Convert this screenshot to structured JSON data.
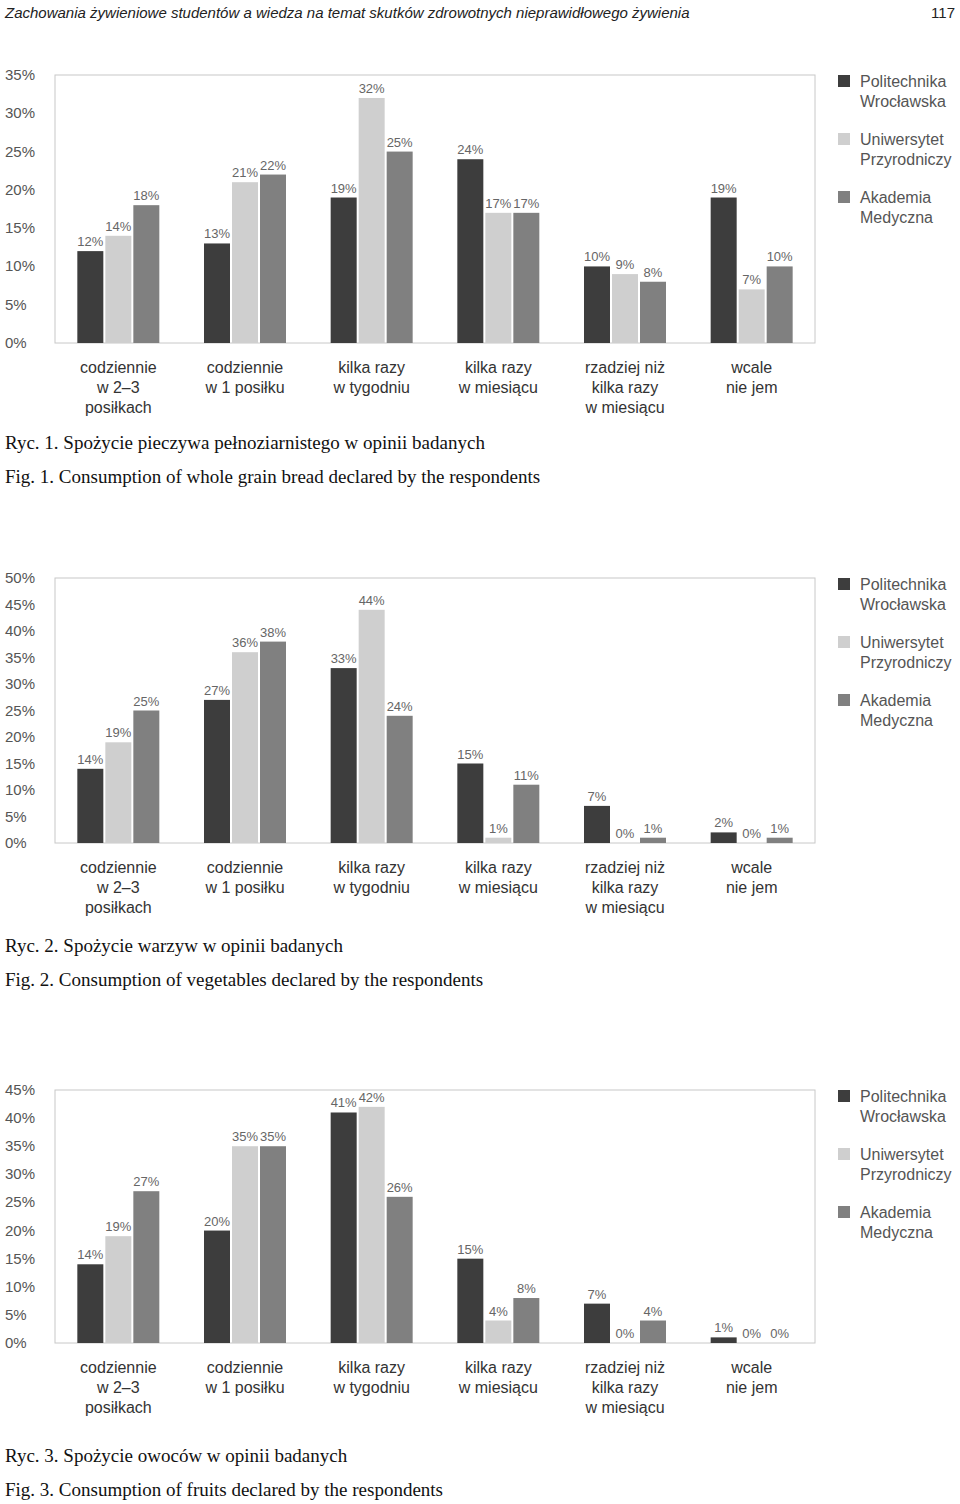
{
  "header": {
    "title": "Zachowania żywieniowe studentów a wiedza na temat skutków zdrowotnych nieprawidłowego żywienia",
    "page": 117
  },
  "chart_data": [
    {
      "type": "bar",
      "title": "Ryc. 1. Spożycie pieczywa pełnoziarnistego w opinii badanych",
      "subtitle": "Fig. 1. Consumption of whole grain bread declared by the respondents",
      "categories": [
        "codziennie\nw 2–3\nposiłkach",
        "codziennie\nw 1 posiłku",
        "kilka razy\nw tygodniu",
        "kilka razy\nw miesiącu",
        "rzadziej niż\nkilka razy\nw miesiącu",
        "wcale\nnie jem"
      ],
      "series": [
        {
          "name": "Politechnika Wrocławska",
          "color": "#3d3d3d",
          "values": [
            12,
            13,
            19,
            24,
            10,
            19
          ],
          "value_labels": [
            "12%",
            "13%",
            "19%",
            "24%",
            "10%",
            "19%"
          ]
        },
        {
          "name": "Uniwersytet Przyrodniczy",
          "color": "#cfcfcf",
          "values": [
            14,
            21,
            32,
            17,
            9,
            7
          ],
          "value_labels": [
            "14%",
            "21%",
            "32%",
            "17%",
            "9%",
            "7%"
          ]
        },
        {
          "name": "Akademia Medyczna",
          "color": "#808080",
          "values": [
            18,
            22,
            25,
            17,
            8,
            10
          ],
          "value_labels": [
            "18%",
            "22%",
            "25%",
            "17%",
            "8%",
            "10%"
          ]
        }
      ],
      "ylim": [
        0,
        35
      ],
      "yticks": [
        {
          "value": 0,
          "label": "0%"
        },
        {
          "value": 5,
          "label": "5%"
        },
        {
          "value": 10,
          "label": "10%"
        },
        {
          "value": 15,
          "label": "15%"
        },
        {
          "value": 20,
          "label": "20%"
        },
        {
          "value": 25,
          "label": "25%"
        },
        {
          "value": 30,
          "label": "30%"
        },
        {
          "value": 35,
          "label": "35%"
        }
      ],
      "grid": false,
      "legend": "right",
      "data_labels": true
    },
    {
      "type": "bar",
      "title": "Ryc. 2. Spożycie warzyw w opinii badanych",
      "subtitle": "Fig. 2. Consumption of vegetables declared by the respondents",
      "categories": [
        "codziennie\nw 2–3\nposiłkach",
        "codziennie\nw 1 posiłku",
        "kilka razy\nw tygodniu",
        "kilka razy\nw miesiącu",
        "rzadziej niż\nkilka razy\nw miesiącu",
        "wcale\nnie jem"
      ],
      "series": [
        {
          "name": "Politechnika Wrocławska",
          "color": "#3d3d3d",
          "values": [
            14,
            27,
            33,
            15,
            7,
            2
          ],
          "value_labels": [
            "14%",
            "27%",
            "33%",
            "15%",
            "7%",
            "2%"
          ]
        },
        {
          "name": "Uniwersytet Przyrodniczy",
          "color": "#cfcfcf",
          "values": [
            19,
            36,
            44,
            1,
            0,
            0
          ],
          "value_labels": [
            "19%",
            "36%",
            "44%",
            "1%",
            "0%",
            "0%"
          ]
        },
        {
          "name": "Akademia Medyczna",
          "color": "#808080",
          "values": [
            25,
            38,
            24,
            11,
            1,
            1
          ],
          "value_labels": [
            "25%",
            "38%",
            "24%",
            "11%",
            "1%",
            "1%"
          ]
        }
      ],
      "ylim": [
        0,
        50
      ],
      "yticks": [
        {
          "value": 0,
          "label": "0%"
        },
        {
          "value": 5,
          "label": "5%"
        },
        {
          "value": 10,
          "label": "10%"
        },
        {
          "value": 15,
          "label": "15%"
        },
        {
          "value": 20,
          "label": "20%"
        },
        {
          "value": 25,
          "label": "25%"
        },
        {
          "value": 30,
          "label": "30%"
        },
        {
          "value": 35,
          "label": "35%"
        },
        {
          "value": 40,
          "label": "40%"
        },
        {
          "value": 45,
          "label": "45%"
        },
        {
          "value": 50,
          "label": "50%"
        }
      ],
      "grid": false,
      "legend": "right",
      "data_labels": true
    },
    {
      "type": "bar",
      "title": "Ryc. 3. Spożycie owoców w opinii badanych",
      "subtitle": "Fig. 3. Consumption of fruits declared by the respondents",
      "categories": [
        "codziennie\nw 2–3\nposiłkach",
        "codziennie\nw 1 posiłku",
        "kilka razy\nw tygodniu",
        "kilka razy\nw miesiącu",
        "rzadziej niż\nkilka razy\nw miesiącu",
        "wcale\nnie jem"
      ],
      "series": [
        {
          "name": "Politechnika Wrocławska",
          "color": "#3d3d3d",
          "values": [
            14,
            20,
            41,
            15,
            7,
            1
          ],
          "value_labels": [
            "14%",
            "20%",
            "41%",
            "15%",
            "7%",
            "1%"
          ]
        },
        {
          "name": "Uniwersytet Przyrodniczy",
          "color": "#cfcfcf",
          "values": [
            19,
            35,
            42,
            4,
            0,
            0
          ],
          "value_labels": [
            "19%",
            "35%",
            "42%",
            "4%",
            "0%",
            "0%"
          ]
        },
        {
          "name": "Akademia Medyczna",
          "color": "#808080",
          "values": [
            27,
            35,
            26,
            8,
            4,
            0
          ],
          "value_labels": [
            "27%",
            "35%",
            "26%",
            "8%",
            "4%",
            "0%"
          ]
        }
      ],
      "ylim": [
        0,
        45
      ],
      "yticks": [
        {
          "value": 0,
          "label": "0%"
        },
        {
          "value": 5,
          "label": "5%"
        },
        {
          "value": 10,
          "label": "10%"
        },
        {
          "value": 15,
          "label": "15%"
        },
        {
          "value": 20,
          "label": "20%"
        },
        {
          "value": 25,
          "label": "25%"
        },
        {
          "value": 30,
          "label": "30%"
        },
        {
          "value": 35,
          "label": "35%"
        },
        {
          "value": 40,
          "label": "40%"
        },
        {
          "value": 45,
          "label": "45%"
        }
      ],
      "grid": false,
      "legend": "right",
      "data_labels": true
    }
  ]
}
